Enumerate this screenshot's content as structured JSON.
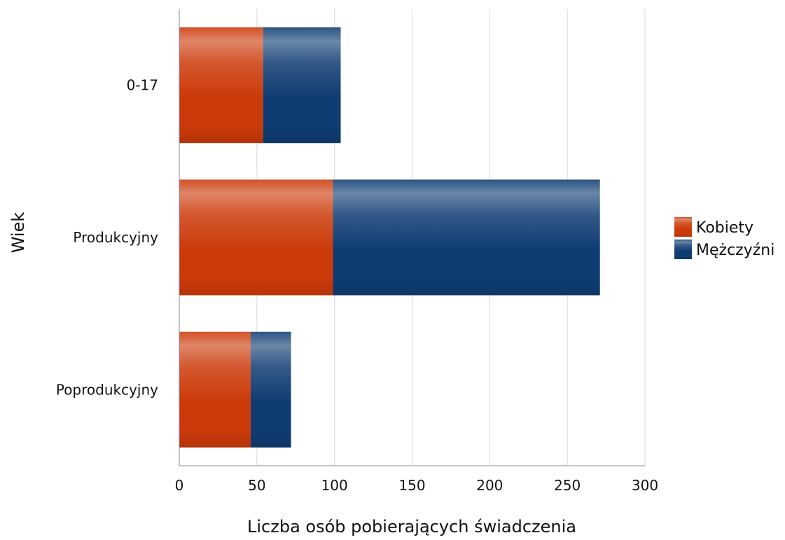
{
  "chart_data": {
    "type": "bar",
    "orientation": "horizontal",
    "stacked": true,
    "title": "",
    "xlabel": "Liczba osób pobierających świadczenia",
    "ylabel": "Wiek",
    "categories": [
      "0-17",
      "Produkcyjny",
      "Poprodukcyjny"
    ],
    "series": [
      {
        "name": "Kobiety",
        "values": [
          54,
          99,
          46
        ],
        "color": "#cc3a0a"
      },
      {
        "name": "Mężczyźni",
        "values": [
          50,
          172,
          26
        ],
        "color": "#0f3d73"
      }
    ],
    "xlim": [
      0,
      300
    ],
    "xticks": [
      0,
      50,
      100,
      150,
      200,
      250,
      300
    ],
    "grid": "vertical",
    "legend_position": "right"
  }
}
